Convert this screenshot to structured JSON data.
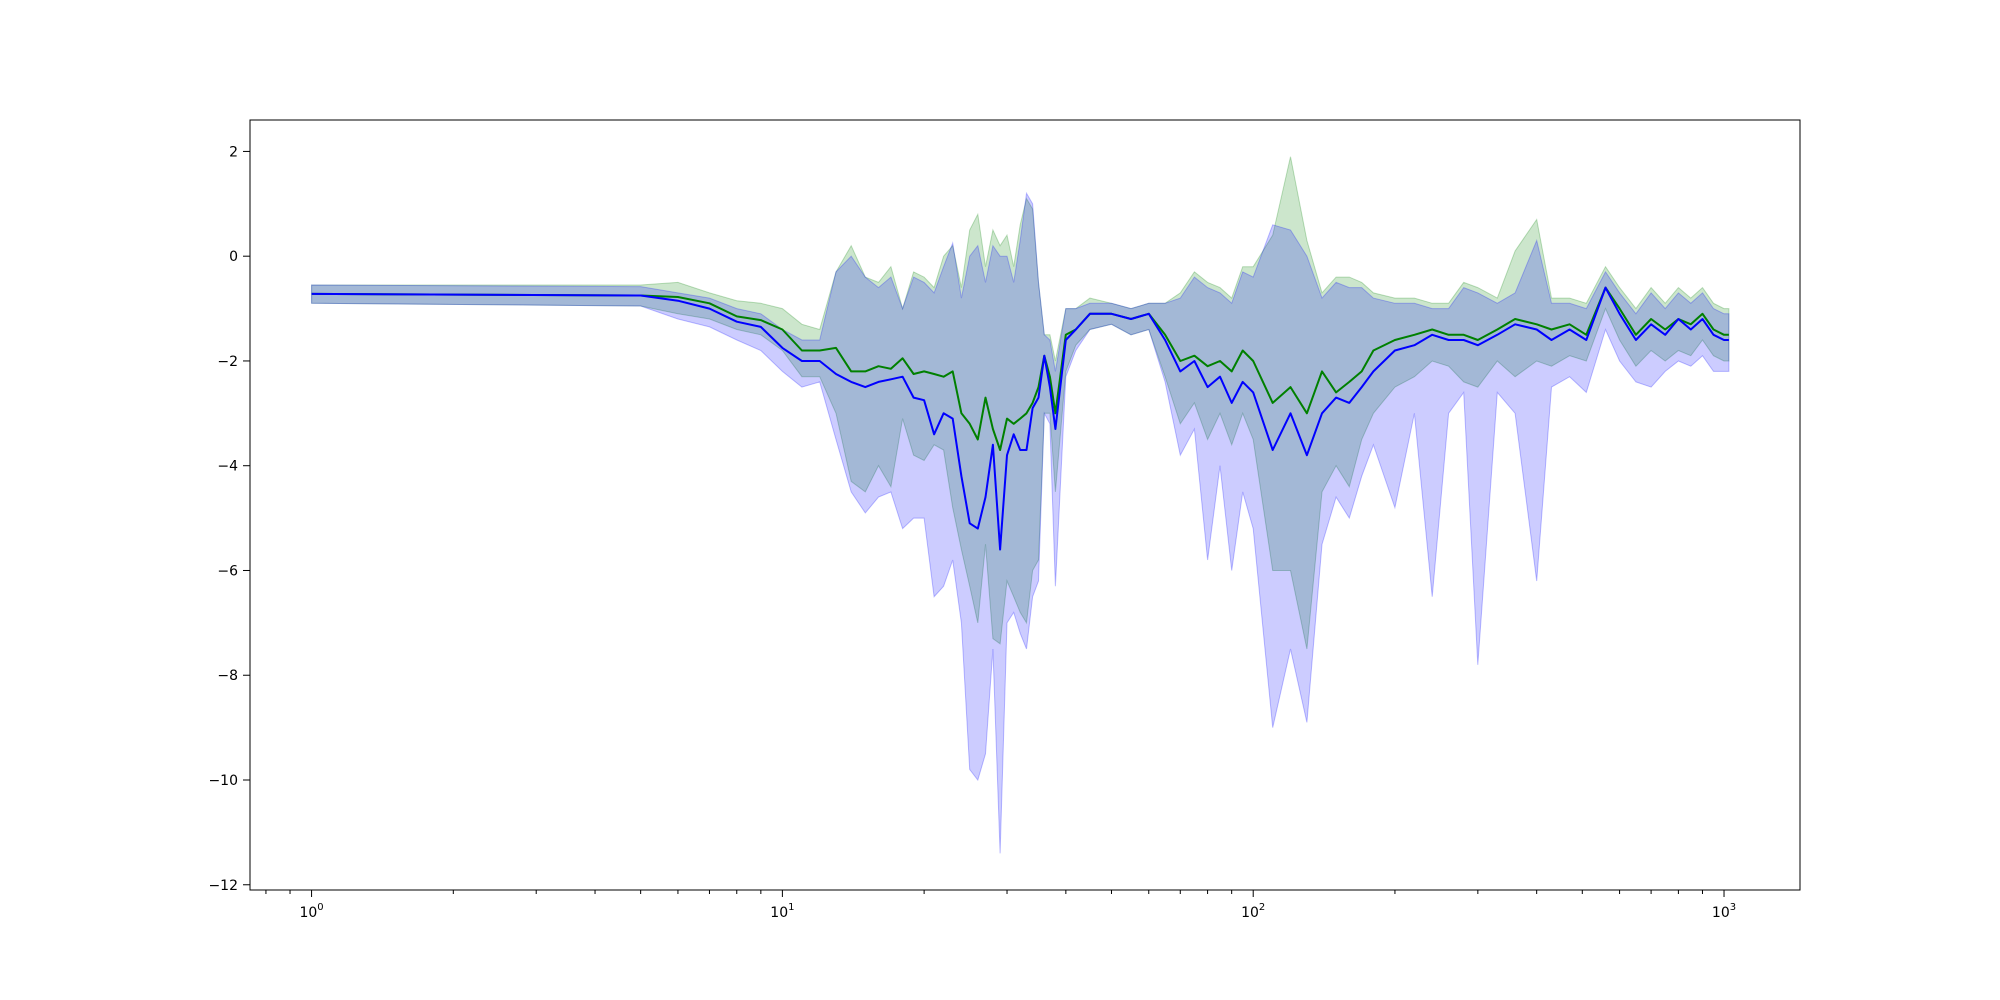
{
  "chart_data": {
    "type": "line",
    "title": "",
    "xlabel": "",
    "ylabel": "",
    "xscale": "log",
    "xlim": [
      0.74,
      1450
    ],
    "ylim": [
      -12.1,
      2.6
    ],
    "grid": false,
    "legend": "none",
    "x_ticks": [
      {
        "base": "10",
        "exp": "0",
        "value": 1
      },
      {
        "base": "10",
        "exp": "1",
        "value": 10
      },
      {
        "base": "10",
        "exp": "2",
        "value": 100
      },
      {
        "base": "10",
        "exp": "3",
        "value": 1000
      }
    ],
    "y_ticks": [
      {
        "label": "2",
        "value": 2
      },
      {
        "label": "0",
        "value": 0
      },
      {
        "label": "−2",
        "value": -2
      },
      {
        "label": "−4",
        "value": -4
      },
      {
        "label": "−6",
        "value": -6
      },
      {
        "label": "−8",
        "value": -8
      },
      {
        "label": "−10",
        "value": -10
      },
      {
        "label": "−12",
        "value": -12
      }
    ],
    "series": [
      {
        "color": "#008000",
        "band_color": "#008000",
        "x": [
          1,
          5,
          6,
          7,
          8,
          9,
          10,
          11,
          12,
          13,
          14,
          15,
          16,
          17,
          18,
          19,
          20,
          21,
          22,
          23,
          24,
          25,
          26,
          27,
          28,
          29,
          30,
          31,
          32,
          33,
          34,
          35,
          36,
          37,
          38,
          40,
          42,
          45,
          50,
          55,
          60,
          65,
          70,
          75,
          80,
          85,
          90,
          95,
          100,
          110,
          120,
          130,
          140,
          150,
          160,
          170,
          180,
          200,
          220,
          240,
          260,
          280,
          300,
          330,
          360,
          400,
          430,
          470,
          510,
          560,
          600,
          650,
          700,
          750,
          800,
          850,
          900,
          950,
          1000,
          1024
        ],
        "y": [
          -0.72,
          -0.75,
          -0.78,
          -0.9,
          -1.15,
          -1.22,
          -1.4,
          -1.8,
          -1.8,
          -1.75,
          -2.2,
          -2.2,
          -2.1,
          -2.15,
          -1.95,
          -2.25,
          -2.2,
          -2.25,
          -2.3,
          -2.2,
          -3.0,
          -3.2,
          -3.5,
          -2.7,
          -3.3,
          -3.7,
          -3.1,
          -3.2,
          -3.1,
          -3.0,
          -2.8,
          -2.5,
          -1.9,
          -2.3,
          -3.0,
          -1.5,
          -1.4,
          -1.1,
          -1.1,
          -1.2,
          -1.1,
          -1.5,
          -2.0,
          -1.9,
          -2.1,
          -2.0,
          -2.2,
          -1.8,
          -2.0,
          -2.8,
          -2.5,
          -3.0,
          -2.2,
          -2.6,
          -2.4,
          -2.2,
          -1.8,
          -1.6,
          -1.5,
          -1.4,
          -1.5,
          -1.5,
          -1.6,
          -1.4,
          -1.2,
          -1.3,
          -1.4,
          -1.3,
          -1.5,
          -0.6,
          -1.0,
          -1.5,
          -1.2,
          -1.4,
          -1.2,
          -1.3,
          -1.1,
          -1.4,
          -1.5,
          -1.5
        ],
        "upper": [
          -0.55,
          -0.55,
          -0.5,
          -0.7,
          -0.85,
          -0.9,
          -1.0,
          -1.3,
          -1.4,
          -0.3,
          0.2,
          -0.4,
          -0.5,
          -0.2,
          -1.0,
          -0.3,
          -0.4,
          -0.6,
          0.0,
          0.2,
          -0.6,
          0.5,
          0.8,
          -0.2,
          0.5,
          0.2,
          0.4,
          -0.2,
          0.6,
          1.1,
          0.9,
          -0.5,
          -1.5,
          -1.5,
          -2.0,
          -1.0,
          -1.0,
          -0.8,
          -0.9,
          -1.0,
          -0.9,
          -0.9,
          -0.7,
          -0.3,
          -0.5,
          -0.6,
          -0.8,
          -0.2,
          -0.2,
          0.4,
          1.9,
          0.3,
          -0.7,
          -0.4,
          -0.4,
          -0.5,
          -0.7,
          -0.8,
          -0.8,
          -0.9,
          -0.9,
          -0.5,
          -0.6,
          -0.8,
          0.1,
          0.7,
          -0.8,
          -0.8,
          -0.9,
          -0.2,
          -0.6,
          -1.0,
          -0.6,
          -0.9,
          -0.6,
          -0.8,
          -0.6,
          -0.9,
          -1.0,
          -1.0
        ],
        "lower": [
          -0.9,
          -0.95,
          -1.1,
          -1.2,
          -1.4,
          -1.5,
          -1.8,
          -2.3,
          -2.3,
          -3.0,
          -4.3,
          -4.5,
          -4.0,
          -4.4,
          -3.1,
          -3.8,
          -3.9,
          -3.6,
          -3.7,
          -4.8,
          -5.6,
          -6.3,
          -7.0,
          -5.5,
          -7.3,
          -7.4,
          -6.2,
          -6.5,
          -6.8,
          -7.0,
          -6.0,
          -5.8,
          -3.0,
          -3.0,
          -4.5,
          -2.2,
          -1.7,
          -1.4,
          -1.3,
          -1.5,
          -1.4,
          -2.3,
          -3.2,
          -2.8,
          -3.5,
          -3.0,
          -3.6,
          -3.0,
          -3.5,
          -6.0,
          -6.0,
          -7.5,
          -4.5,
          -4.0,
          -4.4,
          -3.5,
          -3.0,
          -2.5,
          -2.3,
          -2.0,
          -2.1,
          -2.4,
          -2.5,
          -2.0,
          -2.3,
          -2.0,
          -2.1,
          -1.9,
          -2.0,
          -1.0,
          -1.6,
          -2.1,
          -1.8,
          -2.0,
          -1.8,
          -1.9,
          -1.6,
          -1.9,
          -2.0,
          -2.0
        ]
      },
      {
        "color": "#0000ff",
        "band_color": "#0000ff",
        "x": [
          1,
          5,
          6,
          7,
          8,
          9,
          10,
          11,
          12,
          13,
          14,
          15,
          16,
          17,
          18,
          19,
          20,
          21,
          22,
          23,
          24,
          25,
          26,
          27,
          28,
          29,
          30,
          31,
          32,
          33,
          34,
          35,
          36,
          37,
          38,
          40,
          42,
          45,
          50,
          55,
          60,
          65,
          70,
          75,
          80,
          85,
          90,
          95,
          100,
          110,
          120,
          130,
          140,
          150,
          160,
          170,
          180,
          200,
          220,
          240,
          260,
          280,
          300,
          330,
          360,
          400,
          430,
          470,
          510,
          560,
          600,
          650,
          700,
          750,
          800,
          850,
          900,
          950,
          1000,
          1024
        ],
        "y": [
          -0.72,
          -0.75,
          -0.85,
          -1.0,
          -1.25,
          -1.35,
          -1.75,
          -2.0,
          -2.0,
          -2.25,
          -2.4,
          -2.5,
          -2.4,
          -2.35,
          -2.3,
          -2.7,
          -2.75,
          -3.4,
          -3.0,
          -3.1,
          -4.2,
          -5.1,
          -5.2,
          -4.6,
          -3.6,
          -5.6,
          -3.8,
          -3.4,
          -3.7,
          -3.7,
          -2.9,
          -2.7,
          -1.9,
          -2.5,
          -3.3,
          -1.6,
          -1.4,
          -1.1,
          -1.1,
          -1.2,
          -1.1,
          -1.6,
          -2.2,
          -2.0,
          -2.5,
          -2.3,
          -2.8,
          -2.4,
          -2.6,
          -3.7,
          -3.0,
          -3.8,
          -3.0,
          -2.7,
          -2.8,
          -2.5,
          -2.2,
          -1.8,
          -1.7,
          -1.5,
          -1.6,
          -1.6,
          -1.7,
          -1.5,
          -1.3,
          -1.4,
          -1.6,
          -1.4,
          -1.6,
          -0.6,
          -1.1,
          -1.6,
          -1.3,
          -1.5,
          -1.2,
          -1.4,
          -1.2,
          -1.5,
          -1.6,
          -1.6
        ],
        "upper": [
          -0.55,
          -0.58,
          -0.7,
          -0.8,
          -1.0,
          -1.1,
          -1.4,
          -1.6,
          -1.6,
          -0.3,
          0.0,
          -0.4,
          -0.6,
          -0.4,
          -1.0,
          -0.4,
          -0.5,
          -0.7,
          -0.2,
          0.25,
          -0.8,
          0.0,
          0.2,
          -0.5,
          0.2,
          0.0,
          0.0,
          -0.5,
          0.3,
          1.2,
          1.0,
          -0.5,
          -1.5,
          -1.6,
          -2.2,
          -1.0,
          -1.0,
          -0.9,
          -0.9,
          -1.0,
          -0.9,
          -0.9,
          -0.8,
          -0.4,
          -0.6,
          -0.7,
          -0.9,
          -0.3,
          -0.4,
          0.6,
          0.5,
          0.0,
          -0.8,
          -0.5,
          -0.6,
          -0.6,
          -0.8,
          -0.9,
          -0.9,
          -1.0,
          -1.0,
          -0.6,
          -0.7,
          -0.9,
          -0.7,
          0.3,
          -0.9,
          -0.9,
          -1.0,
          -0.3,
          -0.7,
          -1.1,
          -0.7,
          -1.0,
          -0.7,
          -0.9,
          -0.7,
          -1.0,
          -1.1,
          -1.1
        ],
        "lower": [
          -0.9,
          -0.95,
          -1.2,
          -1.35,
          -1.6,
          -1.8,
          -2.2,
          -2.5,
          -2.4,
          -3.5,
          -4.5,
          -4.9,
          -4.6,
          -4.5,
          -5.2,
          -5.0,
          -5.0,
          -6.5,
          -6.3,
          -5.8,
          -7.0,
          -9.8,
          -10.0,
          -9.5,
          -7.5,
          -11.4,
          -7.0,
          -6.8,
          -7.2,
          -7.5,
          -6.5,
          -6.2,
          -3.0,
          -3.2,
          -6.3,
          -2.3,
          -1.8,
          -1.4,
          -1.3,
          -1.5,
          -1.4,
          -2.4,
          -3.8,
          -3.3,
          -5.8,
          -4.0,
          -6.0,
          -4.5,
          -5.2,
          -9.0,
          -7.5,
          -8.9,
          -5.5,
          -4.6,
          -5.0,
          -4.2,
          -3.6,
          -4.8,
          -3.0,
          -6.5,
          -3.0,
          -2.6,
          -7.8,
          -2.6,
          -3.0,
          -6.2,
          -2.5,
          -2.3,
          -2.6,
          -1.4,
          -2.0,
          -2.4,
          -2.5,
          -2.2,
          -2.0,
          -2.1,
          -1.9,
          -2.2,
          -2.2,
          -2.2
        ]
      }
    ]
  }
}
